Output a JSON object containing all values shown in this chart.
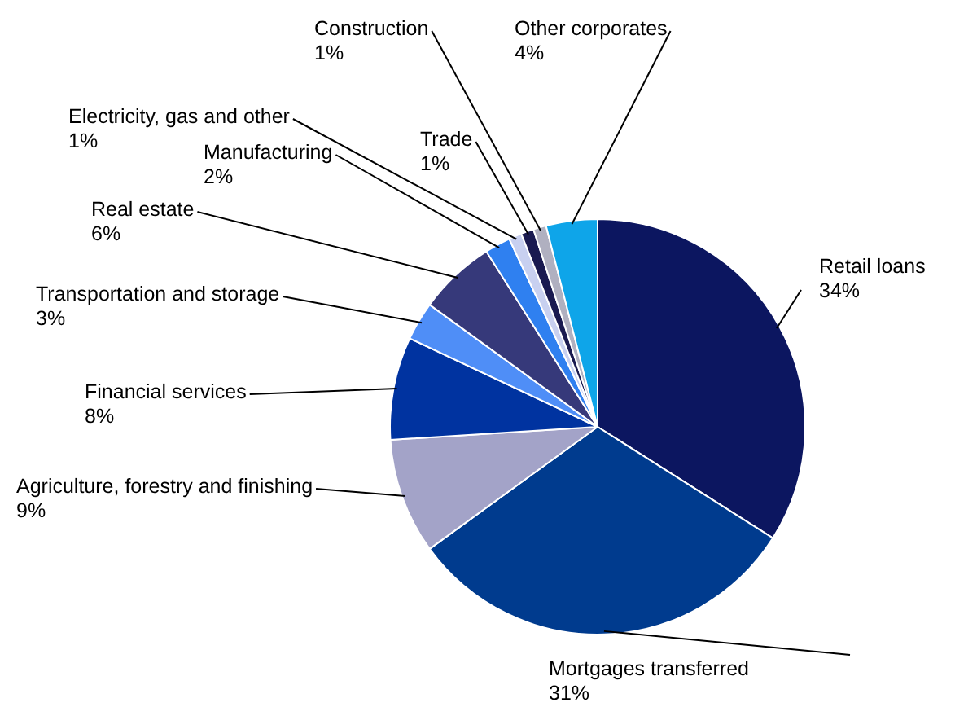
{
  "chart_data": {
    "type": "pie",
    "categories": [
      "Retail loans",
      "Mortgages transferred",
      "Agriculture, forestry and finishing",
      "Financial services",
      "Transportation and storage",
      "Real estate",
      "Manufacturing",
      "Electricity, gas and other",
      "Trade",
      "Construction",
      "Other corporates"
    ],
    "values": [
      34,
      31,
      9,
      8,
      3,
      6,
      2,
      1,
      1,
      1,
      4
    ],
    "value_labels": [
      "34%",
      "31%",
      "9%",
      "8%",
      "3%",
      "6%",
      "2%",
      "1%",
      "1%",
      "1%",
      "4%"
    ],
    "colors": [
      "#0c1660",
      "#003b8e",
      "#a3a3c8",
      "#0033a0",
      "#4f8ef7",
      "#36397a",
      "#2f80f0",
      "#c8d0f0",
      "#1a1a50",
      "#b0b0c0",
      "#0ea5e9"
    ],
    "legend": false
  }
}
